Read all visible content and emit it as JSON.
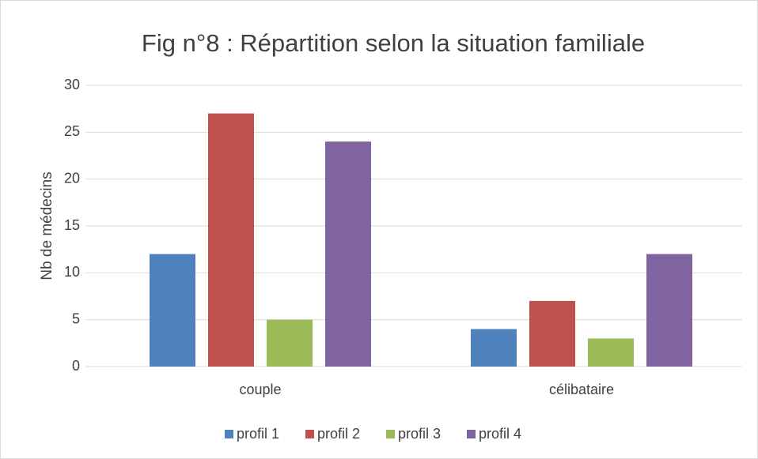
{
  "chart_data": {
    "type": "bar",
    "title": "Fig n°8 : Répartition selon la situation familiale",
    "ylabel": "Nb de médecins",
    "categories": [
      "couple",
      "célibataire"
    ],
    "series": [
      {
        "name": "profil 1",
        "color": "#4f81bd",
        "values": [
          12,
          4
        ]
      },
      {
        "name": "profil 2",
        "color": "#c0504d",
        "values": [
          27,
          7
        ]
      },
      {
        "name": "profil 3",
        "color": "#9bbb59",
        "values": [
          5,
          3
        ]
      },
      {
        "name": "profil 4",
        "color": "#8064a2",
        "values": [
          24,
          12
        ]
      }
    ],
    "ylim": [
      0,
      30
    ],
    "yticks": [
      0,
      5,
      10,
      15,
      20,
      25,
      30
    ],
    "grid": true,
    "legend": "bottom"
  }
}
